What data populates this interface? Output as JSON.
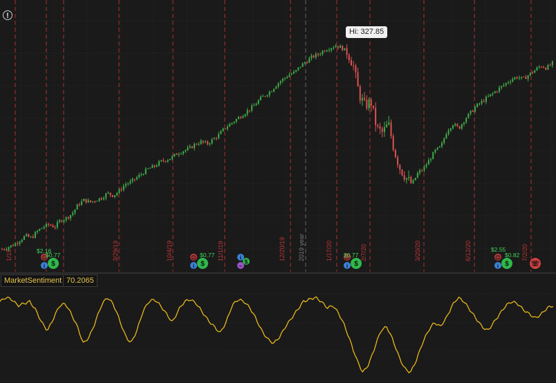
{
  "header": {
    "info_icon": "exclamation-circle-icon"
  },
  "price_panel": {
    "hi_label": "Hi: 327.85",
    "year_label": "2019 year",
    "divider_dates": [
      "1/18",
      "3/29/19",
      "10/4/19",
      "11/1/19",
      "12/20/19",
      "1/17/20",
      "2/7/20",
      "3/20/20",
      "6/12/20",
      "7/2/20"
    ],
    "event_labels": [
      "$2.16",
      "$0.77",
      "$0.77",
      "$0.77",
      "$2.55",
      "$0.82"
    ]
  },
  "study": {
    "name": "MarketSentiment",
    "value": "70.2065"
  },
  "colors": {
    "up": "#3fae49",
    "down": "#e05252",
    "sentiment": "#e8b81c",
    "divider": "#b03030"
  },
  "chart_data": [
    {
      "type": "candlestick",
      "panel": "price",
      "ylim": [
        230,
        335
      ],
      "high_label": 327.85,
      "close_path": [
        236,
        237,
        238,
        240,
        242,
        241,
        244,
        246,
        247,
        246,
        249,
        250,
        252,
        256,
        258,
        257,
        258,
        259,
        261,
        260,
        262,
        265,
        266,
        268,
        270,
        272,
        273,
        275,
        276,
        277,
        279,
        280,
        281,
        283,
        284,
        283,
        285,
        287,
        290,
        292,
        294,
        296,
        298,
        300,
        303,
        305,
        307,
        310,
        312,
        314,
        315,
        318,
        320,
        322,
        323,
        325,
        326,
        327,
        326,
        324,
        318,
        305,
        300,
        302,
        290,
        288,
        292,
        280,
        272,
        268,
        265,
        270,
        272,
        276,
        280,
        282,
        289,
        292,
        290,
        294,
        297,
        300,
        302,
        304,
        306,
        308,
        310,
        312,
        313,
        312,
        314,
        316,
        318,
        317,
        319
      ]
    },
    {
      "type": "line",
      "panel": "lower",
      "series": [
        {
          "name": "MarketSentiment",
          "last_value": 70.2065,
          "values": [
            72,
            74,
            73,
            70,
            71,
            72,
            68,
            62,
            58,
            64,
            70,
            71,
            66,
            60,
            52,
            55,
            62,
            70,
            74,
            71,
            64,
            56,
            52,
            58,
            67,
            72,
            73,
            70,
            66,
            62,
            68,
            72,
            73,
            71,
            67,
            63,
            60,
            57,
            62,
            70,
            73,
            72,
            69,
            64,
            58,
            54,
            52,
            55,
            60,
            64,
            68,
            72,
            73,
            74,
            72,
            69,
            70,
            66,
            60,
            52,
            44,
            38,
            42,
            50,
            58,
            60,
            54,
            46,
            40,
            38,
            44,
            52,
            58,
            62,
            60,
            64,
            70,
            74,
            72,
            68,
            64,
            60,
            58,
            62,
            66,
            70,
            72,
            71,
            68,
            66,
            64,
            66,
            69,
            70
          ]
        }
      ]
    }
  ]
}
